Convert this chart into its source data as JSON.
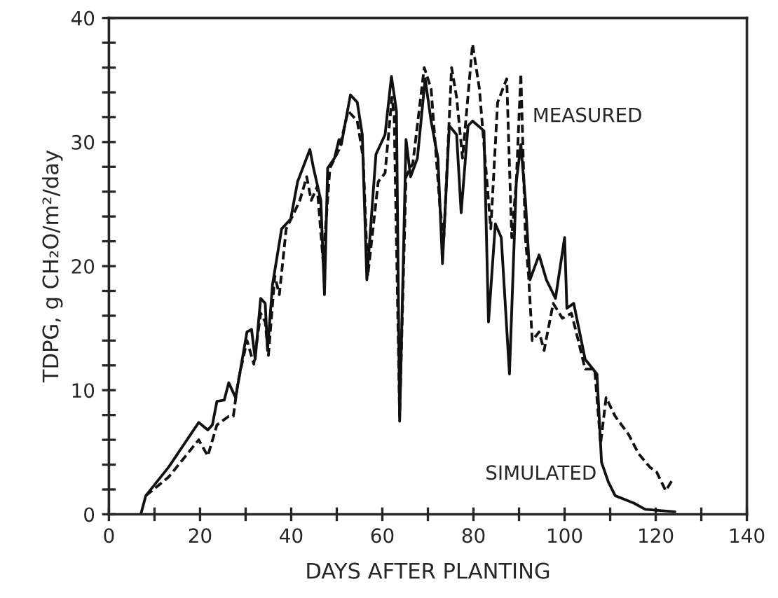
{
  "chart_data": {
    "type": "line",
    "xlabel": "DAYS AFTER PLANTING",
    "ylabel": "TDPG, g CH₂O/m²/day",
    "xlim": [
      0,
      140
    ],
    "ylim": [
      0,
      40
    ],
    "xticks": [
      0,
      {
        "value": 10,
        "label": null
      },
      20,
      {
        "value": 30,
        "label": null
      },
      40,
      {
        "value": 50,
        "label": null
      },
      60,
      {
        "value": 70,
        "label": null
      },
      80,
      {
        "value": 90,
        "label": null
      },
      100,
      {
        "value": 110,
        "label": null
      },
      120,
      {
        "value": 130,
        "label": null
      },
      140
    ],
    "yticks": [
      0,
      {
        "value": 2,
        "label": null
      },
      {
        "value": 4,
        "label": null
      },
      {
        "value": 6,
        "label": null
      },
      {
        "value": 8,
        "label": null
      },
      10,
      {
        "value": 12,
        "label": null
      },
      {
        "value": 14,
        "label": null
      },
      {
        "value": 16,
        "label": null
      },
      {
        "value": 18,
        "label": null
      },
      20,
      {
        "value": 22,
        "label": null
      },
      {
        "value": 24,
        "label": null
      },
      {
        "value": 26,
        "label": null
      },
      {
        "value": 28,
        "label": null
      },
      30,
      {
        "value": 32,
        "label": null
      },
      {
        "value": 34,
        "label": null
      },
      {
        "value": 36,
        "label": null
      },
      {
        "value": 38,
        "label": null
      },
      40
    ],
    "grid": false,
    "series": [
      {
        "color": "#111111",
        "line_style": "solid",
        "x": [
          7,
          8.1,
          13.1,
          19.7,
          21.7,
          22.7,
          23.7,
          25.3,
          26.3,
          27.8,
          30.3,
          31.3,
          32.1,
          33.3,
          34.3,
          34.8,
          35.9,
          37.9,
          39.9,
          41.4,
          44.1,
          44.9,
          46.5,
          47.3,
          48,
          49.5,
          50.5,
          51,
          53,
          54.5,
          55.6,
          56.6,
          58.6,
          60.6,
          62,
          63.1,
          63.8,
          65.2,
          66.2,
          67.7,
          69.4,
          70.7,
          72.2,
          73.2,
          74.7,
          76.3,
          77.3,
          78.8,
          79.8,
          82.3,
          83.3,
          84.8,
          86.1,
          87.9,
          89.4,
          90.4,
          91.4,
          92.4,
          94.4,
          96,
          98,
          100,
          100.5,
          102,
          104.5,
          107.1,
          108.1,
          109.6,
          111.1,
          115.2,
          117.7,
          124.2
        ],
        "values": [
          0,
          1.5,
          3.8,
          7.4,
          6.8,
          7.2,
          9.1,
          9.2,
          10.6,
          9.4,
          14.7,
          14.9,
          12.5,
          17.4,
          17,
          13.2,
          18.5,
          23,
          23.8,
          26.8,
          29.4,
          27.9,
          25.3,
          17.7,
          27.9,
          28.7,
          30.2,
          29.8,
          33.8,
          33.2,
          30.6,
          18.9,
          29,
          30.6,
          35.3,
          32.5,
          7.5,
          30.2,
          27.2,
          28.7,
          35.1,
          31.7,
          28.7,
          20.2,
          31.3,
          30.6,
          24.3,
          31.3,
          31.7,
          30.9,
          15.5,
          23.4,
          22.3,
          11.3,
          26.8,
          29.8,
          25.3,
          18.9,
          20.9,
          18.9,
          17.4,
          22.3,
          16.6,
          17,
          12.5,
          11.3,
          4.2,
          2.6,
          1.5,
          0.9,
          0.4,
          0.2
        ]
      },
      {
        "color": "#111111",
        "line_style": "dashed",
        "x": [
          8.1,
          13.1,
          19.7,
          21.7,
          23.7,
          26.3,
          27.3,
          28.3,
          30.3,
          31.8,
          33.3,
          34.3,
          35,
          36.4,
          37.4,
          38.9,
          40.9,
          41.9,
          43.4,
          44.4,
          45.7,
          47,
          48.5,
          50.5,
          52.5,
          54.5,
          55.8,
          56.8,
          59.1,
          60.6,
          62.1,
          62.6,
          63.8,
          65.2,
          66.7,
          69.2,
          70.7,
          72.7,
          73.5,
          75.2,
          76.3,
          77.6,
          79.8,
          81.3,
          83.8,
          85.3,
          87.3,
          88.4,
          89.4,
          90.4,
          91.4,
          92.1,
          92.9,
          94.4,
          95.5,
          97.5,
          99.5,
          101.5,
          103,
          104.5,
          106.6,
          107.9,
          109.1,
          111.1,
          114.1,
          116.2,
          118.7,
          120.2,
          122.2,
          123.7
        ],
        "values": [
          1.5,
          3,
          6,
          4.7,
          7.2,
          7.9,
          7.9,
          10.6,
          14,
          12.1,
          16.2,
          15.5,
          12.8,
          19.2,
          17.7,
          23,
          24.5,
          25.3,
          27.2,
          25.3,
          26.4,
          20.4,
          27.9,
          29.4,
          32.5,
          31.7,
          28.7,
          19.2,
          26.8,
          27.5,
          33.6,
          32.1,
          7.9,
          27.2,
          28.3,
          36,
          34.3,
          24.5,
          22.3,
          36,
          33.6,
          28.7,
          37.9,
          34.3,
          23,
          33.2,
          35.1,
          22.3,
          26.8,
          35.5,
          22.3,
          19.2,
          14,
          14.7,
          13.2,
          17,
          15.8,
          16.2,
          14,
          11.7,
          11.7,
          5.7,
          9.4,
          7.9,
          6.4,
          4.9,
          3.8,
          3.4,
          1.9,
          2.8
        ]
      }
    ],
    "annotations": [
      {
        "text": "MEASURED",
        "x": 90.4,
        "y": 35.5
      },
      {
        "text": "SIMULATED",
        "x": 109.6,
        "y": 2.6
      }
    ]
  }
}
